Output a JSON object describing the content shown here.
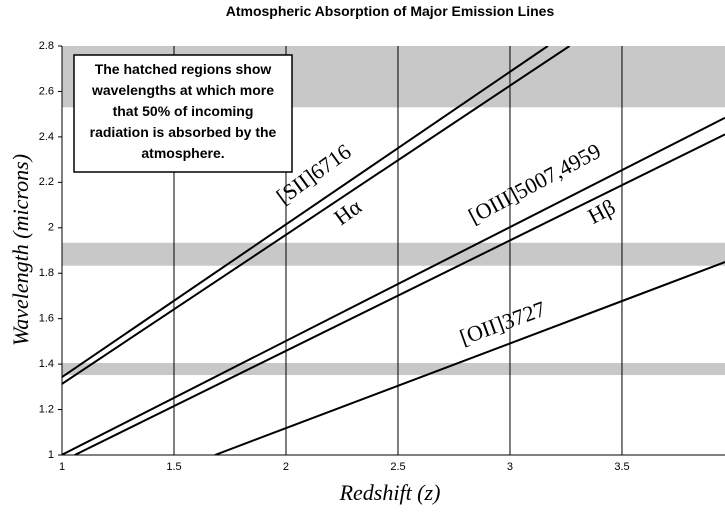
{
  "chart_data": {
    "type": "line",
    "title": "Atmospheric Absorption of Major Emission Lines",
    "x_label": "Redshift (z)",
    "y_label": "Wavelength (microns)",
    "xlim": [
      1,
      3.96
    ],
    "ylim": [
      1,
      2.8
    ],
    "xticks": [
      1,
      1.5,
      2,
      2.5,
      3,
      3.5
    ],
    "yticks": [
      1,
      1.2,
      1.4,
      1.6,
      1.8,
      2,
      2.2,
      2.4,
      2.6,
      2.8
    ],
    "grid": "x",
    "band_color": "#c8c8c8",
    "bands": [
      [
        2.53,
        2.8
      ],
      [
        1.833,
        1.934
      ],
      [
        1.352,
        1.405
      ]
    ],
    "series": [
      {
        "name": "[SII]6716",
        "color": "#000000",
        "x": [
          1,
          3.169
        ],
        "values": [
          1.343,
          2.8
        ]
      },
      {
        "name": "Hα",
        "color": "#000000",
        "x": [
          1,
          3.266
        ],
        "values": [
          1.313,
          2.8
        ]
      },
      {
        "name": "[OIII]5007,4959",
        "color": "#000000",
        "x": [
          1,
          3.96
        ],
        "values": [
          1.001,
          2.484
        ]
      },
      {
        "name": "Hβ",
        "color": "#000000",
        "x": [
          1.057,
          3.96
        ],
        "values": [
          1,
          2.411
        ]
      },
      {
        "name": "[OII]3727",
        "color": "#000000",
        "x": [
          1.683,
          3.96
        ],
        "values": [
          1,
          1.849
        ]
      }
    ],
    "annotation_lines": [
      "The hatched regions show",
      "wavelengths at which more",
      "that 50% of incoming",
      "radiation is absorbed by the",
      "atmosphere."
    ]
  }
}
